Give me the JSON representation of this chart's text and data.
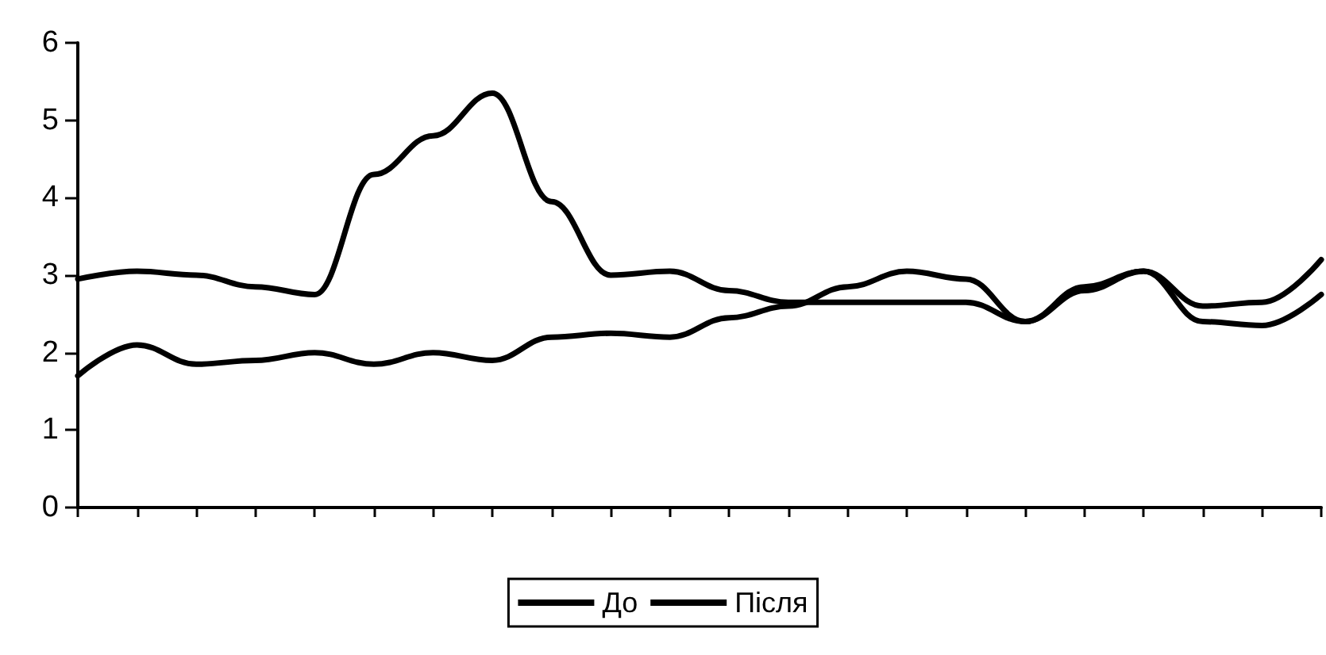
{
  "chart_data": {
    "type": "line",
    "categories": [
      null,
      null,
      null,
      null,
      null,
      null,
      null,
      null,
      null,
      null,
      null,
      null,
      null,
      null,
      null,
      null,
      null,
      null,
      null,
      null,
      null,
      null
    ],
    "series": [
      {
        "name": "До",
        "color": "#000000",
        "values": [
          2.95,
          3.05,
          3.0,
          2.85,
          2.75,
          4.3,
          4.8,
          5.35,
          3.95,
          3.0,
          3.05,
          2.8,
          2.65,
          2.65,
          2.65,
          2.65,
          2.4,
          2.8,
          3.05,
          2.4,
          2.35,
          2.75
        ]
      },
      {
        "name": "Після",
        "color": "#000000",
        "values": [
          1.7,
          2.1,
          1.85,
          1.9,
          2.0,
          1.85,
          2.0,
          1.9,
          2.2,
          2.25,
          2.2,
          2.45,
          2.6,
          2.85,
          3.05,
          2.95,
          2.4,
          2.85,
          3.05,
          2.6,
          2.65,
          3.2
        ]
      }
    ],
    "ylim": [
      0,
      6
    ],
    "yticks": [
      0,
      1,
      2,
      3,
      4,
      5,
      6
    ],
    "grid": false,
    "legend": "bottom",
    "marker": "none",
    "line_style": "solid"
  }
}
